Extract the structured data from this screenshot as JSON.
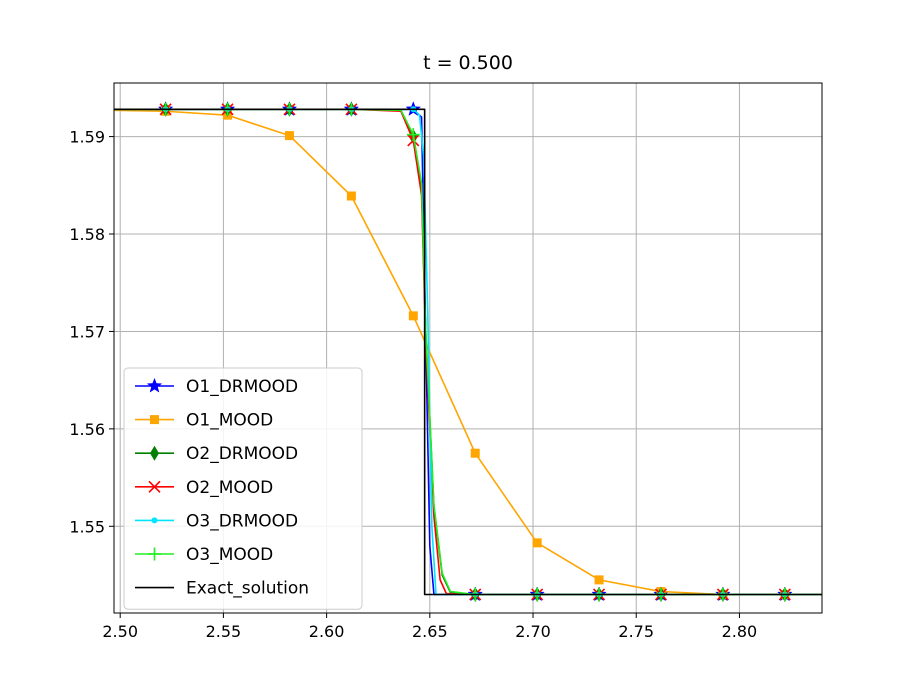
{
  "chart_data": {
    "type": "line",
    "title": "t = 0.500",
    "xlabel": "",
    "ylabel": "",
    "xlim": [
      2.497,
      2.84
    ],
    "ylim": [
      1.5411,
      1.5955
    ],
    "x_ticks": [
      2.5,
      2.55,
      2.6,
      2.65,
      2.7,
      2.75,
      2.8
    ],
    "x_tick_labels": [
      "2.50",
      "2.55",
      "2.60",
      "2.65",
      "2.70",
      "2.75",
      "2.80"
    ],
    "y_ticks": [
      1.55,
      1.56,
      1.57,
      1.58,
      1.59
    ],
    "y_tick_labels": [
      "1.55",
      "1.56",
      "1.57",
      "1.58",
      "1.59"
    ],
    "grid": true,
    "legend_position": "lower-left",
    "series": [
      {
        "name": "O1_DRMOOD",
        "color": "#0000ff",
        "marker": "star",
        "x": [
          2.497,
          2.522,
          2.552,
          2.582,
          2.612,
          2.642,
          2.646,
          2.6475,
          2.65,
          2.652,
          2.672,
          2.702,
          2.732,
          2.762,
          2.792,
          2.822,
          2.84
        ],
        "y": [
          1.5928,
          1.5928,
          1.5928,
          1.5928,
          1.5928,
          1.5928,
          1.592,
          1.575,
          1.548,
          1.543,
          1.543,
          1.543,
          1.543,
          1.543,
          1.543,
          1.543,
          1.543
        ],
        "marker_x": [
          2.522,
          2.552,
          2.582,
          2.612,
          2.642,
          2.672,
          2.702,
          2.732,
          2.762,
          2.792,
          2.822
        ],
        "marker_y": [
          1.5928,
          1.5928,
          1.5928,
          1.5928,
          1.5928,
          1.543,
          1.543,
          1.543,
          1.543,
          1.543,
          1.543
        ]
      },
      {
        "name": "O1_MOOD",
        "color": "#ffa500",
        "marker": "square",
        "x": [
          2.497,
          2.522,
          2.552,
          2.582,
          2.612,
          2.642,
          2.672,
          2.702,
          2.732,
          2.762,
          2.792,
          2.822,
          2.84
        ],
        "y": [
          1.5927,
          1.5926,
          1.5922,
          1.5901,
          1.5839,
          1.5716,
          1.5575,
          1.5483,
          1.5445,
          1.5433,
          1.543,
          1.543,
          1.543
        ],
        "marker_x": [
          2.522,
          2.552,
          2.582,
          2.612,
          2.642,
          2.672,
          2.702,
          2.732,
          2.762,
          2.792,
          2.822
        ],
        "marker_y": [
          1.5926,
          1.5922,
          1.5901,
          1.5839,
          1.5716,
          1.5575,
          1.5483,
          1.5445,
          1.5433,
          1.543,
          1.543
        ]
      },
      {
        "name": "O2_DRMOOD",
        "color": "#008000",
        "marker": "thin_diamond",
        "x": [
          2.497,
          2.522,
          2.552,
          2.582,
          2.612,
          2.636,
          2.642,
          2.646,
          2.648,
          2.652,
          2.656,
          2.66,
          2.672,
          2.702,
          2.732,
          2.762,
          2.792,
          2.822,
          2.84
        ],
        "y": [
          1.5928,
          1.5928,
          1.5928,
          1.5928,
          1.5928,
          1.5927,
          1.59,
          1.585,
          1.57,
          1.552,
          1.545,
          1.5432,
          1.543,
          1.543,
          1.543,
          1.543,
          1.543,
          1.543,
          1.543
        ],
        "marker_x": [
          2.522,
          2.552,
          2.582,
          2.612,
          2.642,
          2.672,
          2.702,
          2.732,
          2.762,
          2.792,
          2.822
        ],
        "marker_y": [
          1.5928,
          1.5928,
          1.5928,
          1.5928,
          1.59,
          1.543,
          1.543,
          1.543,
          1.543,
          1.543,
          1.543
        ]
      },
      {
        "name": "O2_MOOD",
        "color": "#ff0000",
        "marker": "x",
        "x": [
          2.497,
          2.522,
          2.552,
          2.582,
          2.612,
          2.636,
          2.642,
          2.646,
          2.648,
          2.652,
          2.655,
          2.658,
          2.672,
          2.702,
          2.732,
          2.762,
          2.792,
          2.822,
          2.84
        ],
        "y": [
          1.5928,
          1.5928,
          1.5928,
          1.5928,
          1.5928,
          1.5926,
          1.5896,
          1.584,
          1.569,
          1.551,
          1.5445,
          1.5431,
          1.543,
          1.543,
          1.543,
          1.543,
          1.543,
          1.543,
          1.543
        ],
        "marker_x": [
          2.522,
          2.552,
          2.582,
          2.612,
          2.642,
          2.672,
          2.702,
          2.732,
          2.762,
          2.792,
          2.822
        ],
        "marker_y": [
          1.5928,
          1.5928,
          1.5928,
          1.5928,
          1.5896,
          1.543,
          1.543,
          1.543,
          1.543,
          1.543,
          1.543
        ]
      },
      {
        "name": "O3_DRMOOD",
        "color": "#00e5ff",
        "marker": "dot",
        "x": [
          2.497,
          2.522,
          2.552,
          2.582,
          2.612,
          2.642,
          2.645,
          2.647,
          2.649,
          2.651,
          2.653,
          2.672,
          2.702,
          2.732,
          2.762,
          2.792,
          2.822,
          2.84
        ],
        "y": [
          1.5928,
          1.5928,
          1.5928,
          1.5928,
          1.5928,
          1.5928,
          1.5922,
          1.588,
          1.572,
          1.55,
          1.543,
          1.543,
          1.543,
          1.543,
          1.543,
          1.543,
          1.543,
          1.543
        ],
        "marker_x": [
          2.522,
          2.552,
          2.582,
          2.612,
          2.642,
          2.672,
          2.702,
          2.732,
          2.762,
          2.792,
          2.822
        ],
        "marker_y": [
          1.5928,
          1.5928,
          1.5928,
          1.5928,
          1.5928,
          1.543,
          1.543,
          1.543,
          1.543,
          1.543,
          1.543
        ]
      },
      {
        "name": "O3_MOOD",
        "color": "#22ee22",
        "marker": "plus",
        "x": [
          2.497,
          2.522,
          2.552,
          2.582,
          2.612,
          2.636,
          2.642,
          2.646,
          2.648,
          2.652,
          2.656,
          2.66,
          2.672,
          2.702,
          2.732,
          2.762,
          2.792,
          2.822,
          2.84
        ],
        "y": [
          1.5928,
          1.5928,
          1.5928,
          1.5928,
          1.5928,
          1.5927,
          1.5902,
          1.5852,
          1.5702,
          1.5522,
          1.5452,
          1.5433,
          1.543,
          1.543,
          1.543,
          1.543,
          1.543,
          1.543,
          1.543
        ],
        "marker_x": [
          2.522,
          2.552,
          2.582,
          2.612,
          2.642,
          2.672,
          2.702,
          2.732,
          2.762,
          2.792,
          2.822
        ],
        "marker_y": [
          1.5928,
          1.5928,
          1.5928,
          1.5928,
          1.5902,
          1.543,
          1.543,
          1.543,
          1.543,
          1.543,
          1.543
        ]
      },
      {
        "name": "Exact_solution",
        "color": "#000000",
        "marker": "none",
        "x": [
          2.497,
          2.6475,
          2.6475,
          2.84
        ],
        "y": [
          1.5928,
          1.5928,
          1.543,
          1.543
        ],
        "marker_x": [],
        "marker_y": []
      }
    ]
  }
}
